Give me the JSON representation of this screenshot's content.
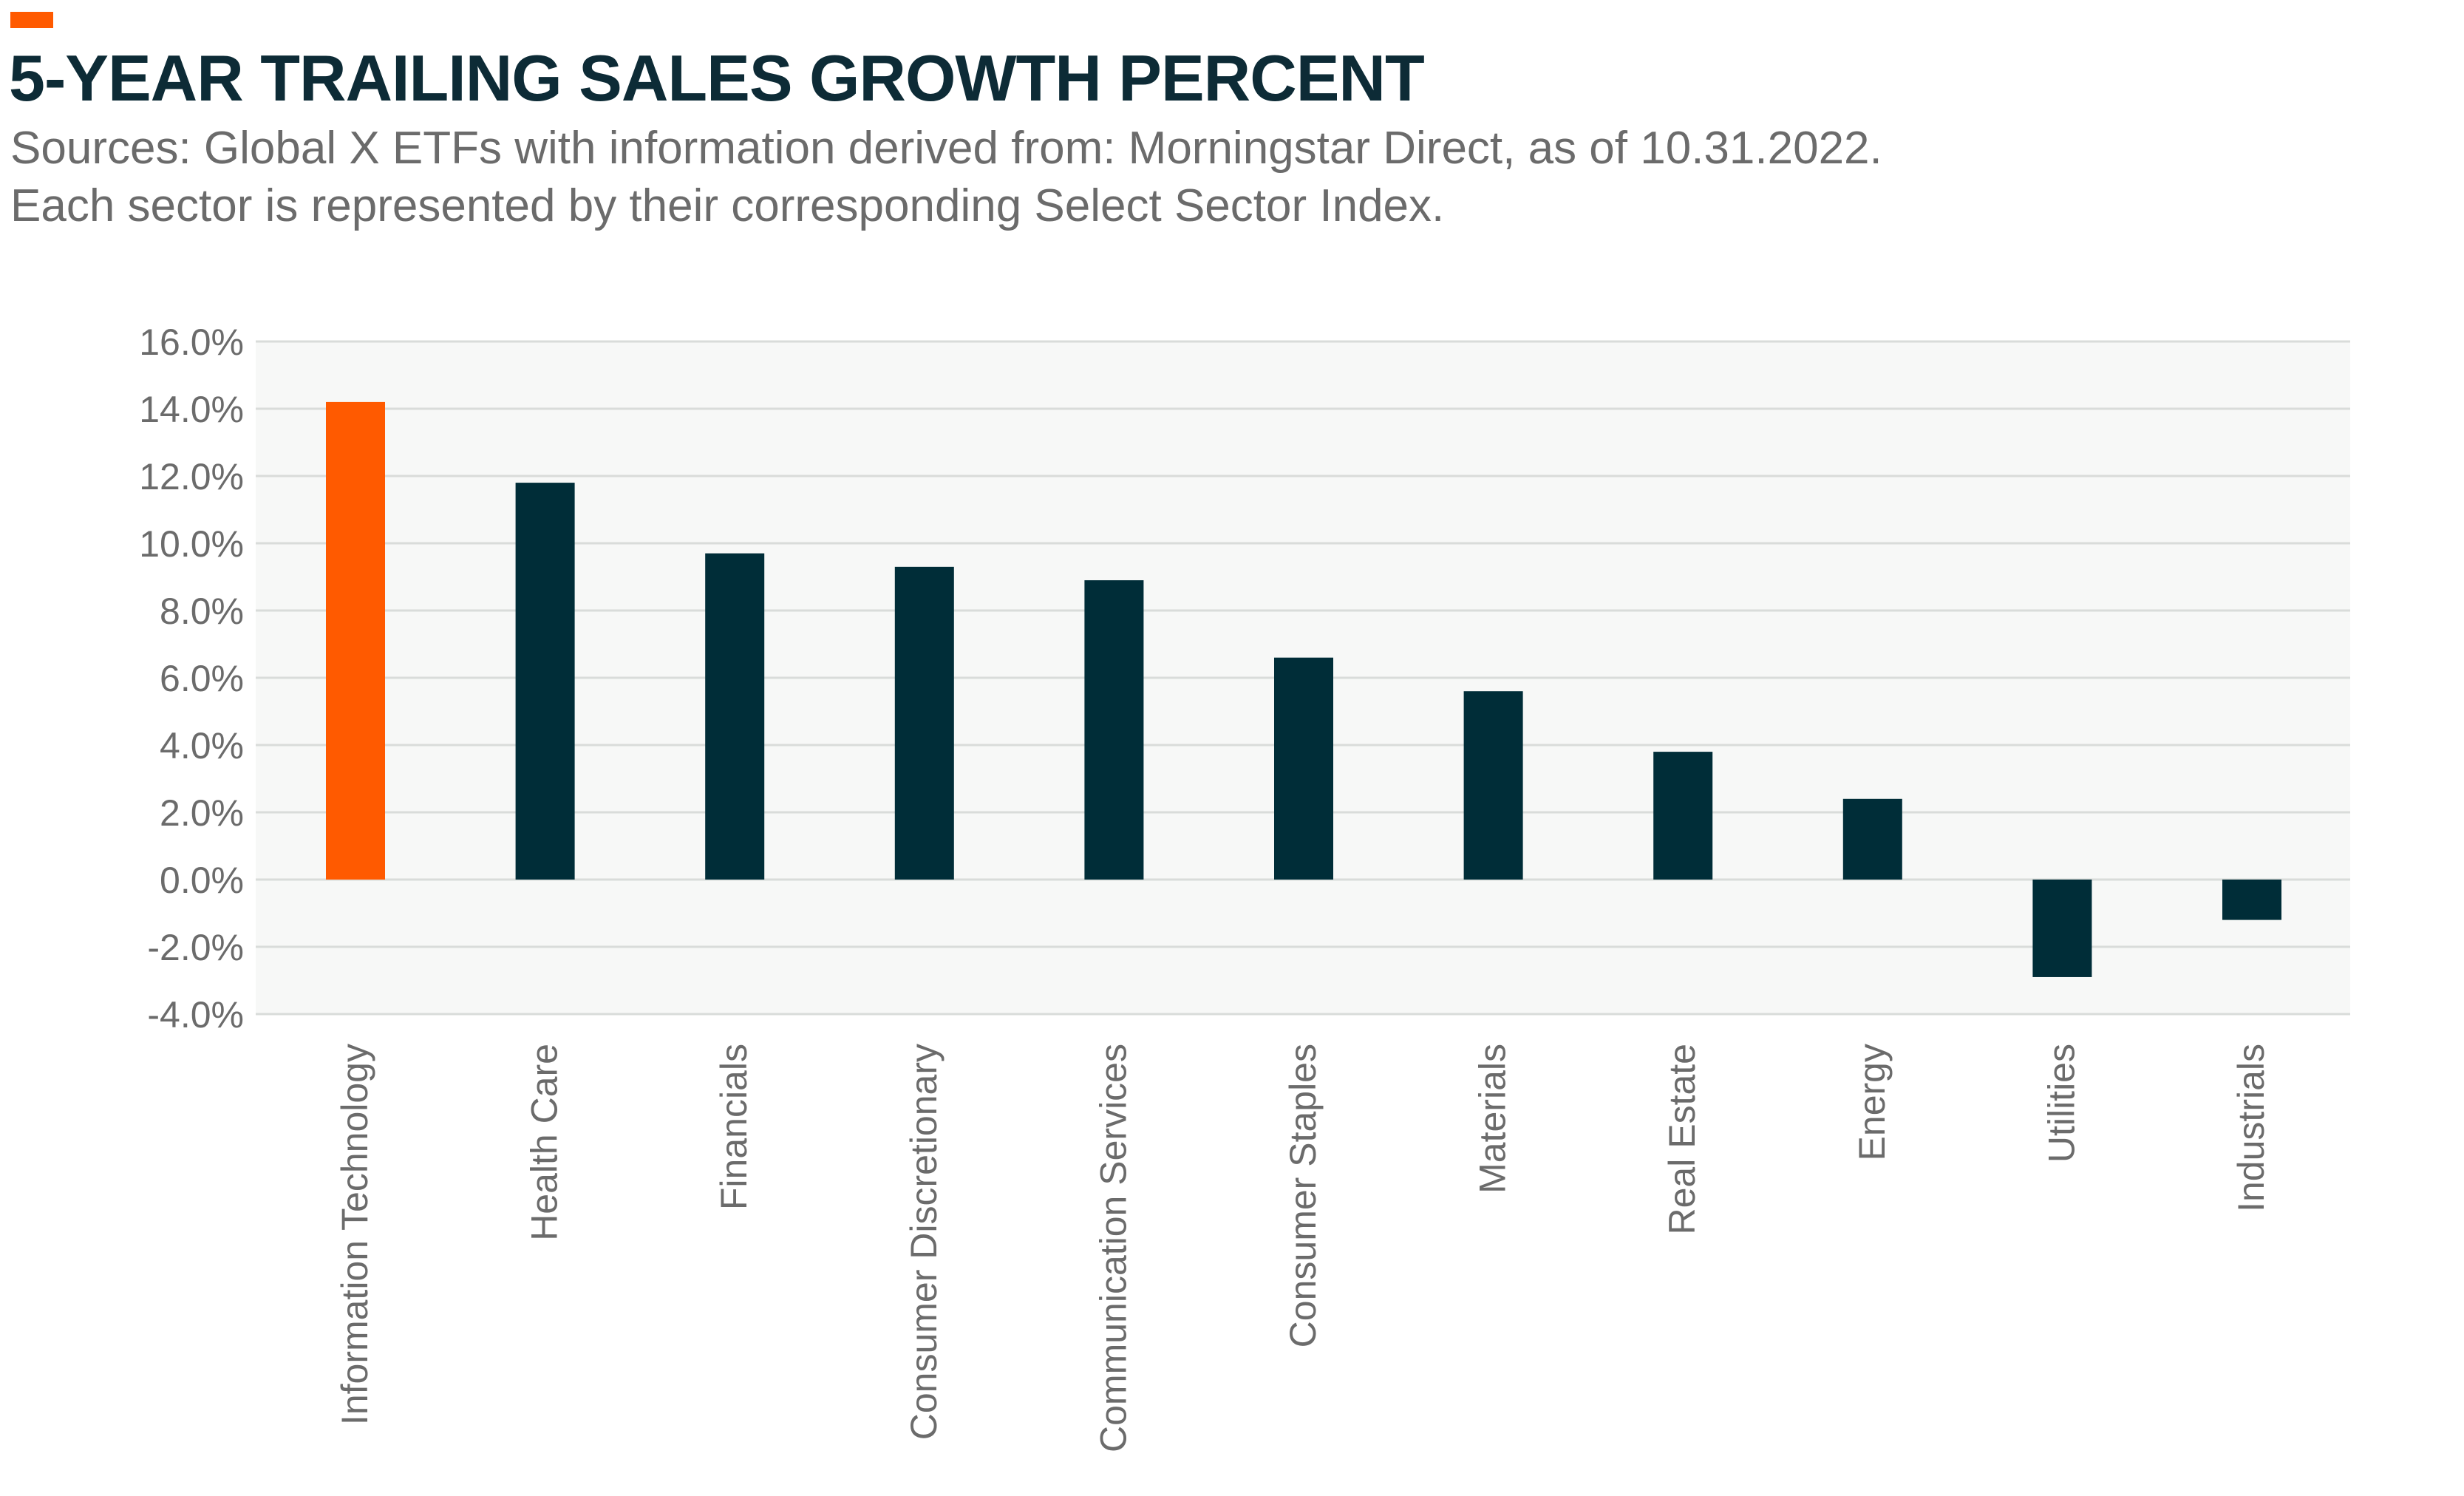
{
  "colors": {
    "accent": "#ff5a00",
    "title": "#0d2b36",
    "subtitle": "#6b6b6b",
    "bar_default": "#002d38",
    "bar_highlight": "#ff5a00",
    "plot_background": "#f7f8f7",
    "gridline": "#d9dcda",
    "tick_label": "#6b6b6b"
  },
  "header": {
    "title": "5-YEAR TRAILING SALES GROWTH PERCENT",
    "subtitle_line1": "Sources: Global X ETFs with information derived from: Morningstar Direct, as of 10.31.2022.",
    "subtitle_line2": "Each sector is represented by their corresponding Select Sector Index."
  },
  "chart_data": {
    "type": "bar",
    "title": "5-YEAR TRAILING SALES GROWTH PERCENT",
    "xlabel": "",
    "ylabel": "",
    "ylim": [
      -4.0,
      16.0
    ],
    "yticks": [
      16.0,
      14.0,
      12.0,
      10.0,
      8.0,
      6.0,
      4.0,
      2.0,
      0.0,
      -2.0,
      -4.0
    ],
    "ytick_labels": [
      "16.0%",
      "14.0%",
      "12.0%",
      "10.0%",
      "8.0%",
      "6.0%",
      "4.0%",
      "2.0%",
      "0.0%",
      "-2.0%",
      "-4.0%"
    ],
    "grid": true,
    "legend": "none",
    "categories": [
      "Information Technology",
      "Health Care",
      "Financials",
      "Consumer Discretionary",
      "Communication Services",
      "Consumer Staples",
      "Materials",
      "Real Estate",
      "Energy",
      "Utilities",
      "Industrials"
    ],
    "values": [
      14.2,
      11.8,
      9.7,
      9.3,
      8.9,
      6.6,
      5.6,
      3.8,
      2.4,
      -2.9,
      -1.2
    ],
    "highlight_index": 0
  }
}
